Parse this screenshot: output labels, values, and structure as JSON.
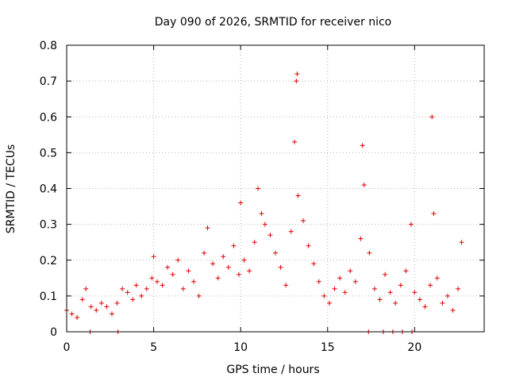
{
  "chart_data": {
    "type": "scatter",
    "title": "Day 090 of 2026, SRMTID for receiver nico",
    "xlabel": "GPS time / hours",
    "ylabel": "SRMTID / TECUs",
    "xlim": [
      0,
      24
    ],
    "ylim": [
      0,
      0.8
    ],
    "xticks": [
      0,
      5,
      10,
      15,
      20
    ],
    "xtick_labels": [
      "0",
      "5",
      "10",
      "15",
      "20"
    ],
    "yticks": [
      0,
      0.1,
      0.2,
      0.3,
      0.4,
      0.5,
      0.6,
      0.7,
      0.8
    ],
    "ytick_labels": [
      "0",
      "0.1",
      "0.2",
      "0.3",
      "0.4",
      "0.5",
      "0.6",
      "0.7",
      "0.8"
    ],
    "grid": true,
    "marker": "plus",
    "color": "#e00000",
    "series": [
      {
        "name": "SRMTID",
        "x": [
          0.0,
          0.3,
          0.6,
          0.9,
          1.1,
          1.4,
          1.7,
          2.0,
          2.3,
          2.6,
          2.9,
          3.2,
          3.5,
          3.8,
          4.0,
          4.3,
          4.6,
          4.9,
          5.0,
          5.2,
          5.5,
          5.8,
          6.1,
          6.4,
          6.7,
          7.0,
          7.3,
          7.6,
          7.9,
          8.1,
          8.4,
          8.7,
          9.0,
          9.3,
          9.6,
          9.9,
          10.0,
          10.2,
          10.5,
          10.8,
          11.0,
          11.2,
          11.4,
          11.7,
          12.0,
          12.3,
          12.6,
          12.9,
          13.1,
          13.2,
          13.25,
          13.3,
          13.6,
          13.9,
          14.2,
          14.5,
          14.8,
          15.1,
          15.4,
          15.7,
          16.0,
          16.3,
          16.6,
          16.9,
          17.0,
          17.1,
          17.4,
          17.7,
          18.0,
          18.3,
          18.6,
          18.9,
          19.2,
          19.5,
          19.8,
          20.0,
          20.3,
          20.6,
          20.9,
          21.0,
          21.1,
          21.3,
          21.6,
          21.9,
          22.2,
          22.5,
          22.7
        ],
        "y": [
          0.06,
          0.05,
          0.04,
          0.09,
          0.12,
          0.07,
          0.06,
          0.08,
          0.07,
          0.05,
          0.08,
          0.12,
          0.11,
          0.09,
          0.13,
          0.1,
          0.12,
          0.15,
          0.21,
          0.14,
          0.13,
          0.18,
          0.16,
          0.2,
          0.12,
          0.17,
          0.14,
          0.1,
          0.22,
          0.29,
          0.19,
          0.15,
          0.21,
          0.18,
          0.24,
          0.16,
          0.36,
          0.2,
          0.17,
          0.25,
          0.4,
          0.33,
          0.3,
          0.27,
          0.22,
          0.18,
          0.13,
          0.28,
          0.53,
          0.7,
          0.72,
          0.38,
          0.31,
          0.24,
          0.19,
          0.14,
          0.1,
          0.08,
          0.12,
          0.15,
          0.11,
          0.17,
          0.14,
          0.26,
          0.52,
          0.41,
          0.22,
          0.12,
          0.09,
          0.16,
          0.11,
          0.08,
          0.13,
          0.17,
          0.3,
          0.11,
          0.09,
          0.07,
          0.13,
          0.6,
          0.33,
          0.15,
          0.08,
          0.1,
          0.06,
          0.12,
          0.25
        ]
      },
      {
        "name": "marks-at-zero",
        "x": [
          1.35,
          2.95,
          17.35,
          18.2,
          18.75,
          19.3,
          19.85
        ],
        "y": [
          0,
          0,
          0,
          0,
          0,
          0,
          0
        ]
      }
    ]
  }
}
